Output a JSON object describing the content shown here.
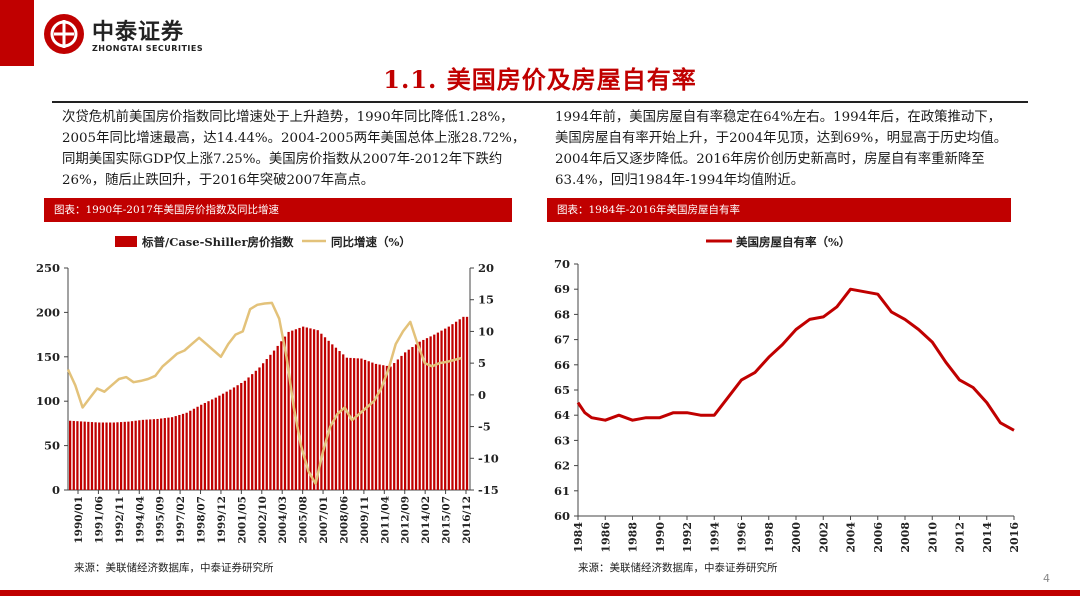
{
  "header": {
    "logo_cn": "中泰证券",
    "logo_en": "ZHONGTAI SECURITIES",
    "title": "1.1. 美国房价及房屋自有率",
    "page_number": "4"
  },
  "text": {
    "left_paragraph": "次贷危机前美国房价指数同比增速处于上升趋势，1990年同比降低1.28%，2005年同比增速最高，达14.44%。2004-2005两年美国总体上涨28.72%，同期美国实际GDP仅上涨7.25%。美国房价指数从2007年-2012年下跌约26%，随后止跌回升，于2016年突破2007年高点。",
    "right_paragraph": "1994年前，美国房屋自有率稳定在64%左右。1994年后，在政策推动下，美国房屋自有率开始上升，于2004年见顶，达到69%，明显高于历史均值。2004年后又逐步降低。2016年房价创历史新高时，房屋自有率重新降至63.4%，回归1984年-1994年均值附近。"
  },
  "figures": {
    "left_caption": "图表：1990年-2017年美国房价指数及同比增速",
    "right_caption": "图表：1984年-2016年美国房屋自有率",
    "left_source": "来源：美联储经济数据库，中泰证券研究所",
    "right_source": "来源：美联储经济数据库，中泰证券研究所"
  },
  "colors": {
    "bar": "#c00000",
    "growth_line": "#e3c27a",
    "ownership_line": "#c00000"
  },
  "chart_data": [
    {
      "type": "bar",
      "title": "1990年-2017年美国房价指数及同比增速",
      "legend": [
        "标普/Case-Shiller房价指数",
        "同比增速（%）"
      ],
      "legend_position": "top",
      "x_tick_labels": [
        "1990/01",
        "1991/06",
        "1992/11",
        "1994/04",
        "1995/09",
        "1997/02",
        "1998/07",
        "1999/12",
        "2001/05",
        "2002/10",
        "2004/03",
        "2005/08",
        "2007/01",
        "2008/06",
        "2009/11",
        "2011/04",
        "2012/09",
        "2014/02",
        "2015/07",
        "2016/12"
      ],
      "y_left": {
        "min": 0,
        "max": 250,
        "ticks": [
          0,
          50,
          100,
          150,
          200,
          250
        ]
      },
      "y_right": {
        "min": -15,
        "max": 20,
        "ticks": [
          -15,
          -10,
          -5,
          0,
          5,
          10,
          15,
          20
        ]
      },
      "series": [
        {
          "name": "标普/Case-Shiller房价指数",
          "axis": "left",
          "type": "bar",
          "frequency": "annual",
          "x": [
            1990,
            1991,
            1992,
            1993,
            1994,
            1995,
            1996,
            1997,
            1998,
            1999,
            2000,
            2001,
            2002,
            2003,
            2004,
            2005,
            2006,
            2007,
            2008,
            2009,
            2010,
            2011,
            2012,
            2013,
            2014,
            2015,
            2016,
            2017
          ],
          "values": [
            78,
            77,
            76,
            76,
            77,
            79,
            80,
            82,
            87,
            96,
            104,
            113,
            123,
            138,
            157,
            178,
            184,
            180,
            164,
            149,
            148,
            142,
            139,
            155,
            167,
            175,
            184,
            195
          ]
        },
        {
          "name": "同比增速（%）",
          "axis": "right",
          "type": "line",
          "x": [
            1990,
            1990.5,
            1991,
            1991.5,
            1992,
            1992.5,
            1993,
            1993.5,
            1994,
            1994.5,
            1995,
            1995.5,
            1996,
            1996.5,
            1997,
            1997.5,
            1998,
            1998.5,
            1999,
            1999.5,
            2000,
            2000.5,
            2001,
            2001.5,
            2002,
            2002.5,
            2003,
            2003.5,
            2004,
            2004.5,
            2005,
            2005.5,
            2006,
            2006.5,
            2007,
            2007.5,
            2008,
            2008.5,
            2009,
            2009.5,
            2010,
            2010.5,
            2011,
            2011.5,
            2012,
            2012.5,
            2013,
            2013.5,
            2014,
            2014.5,
            2015,
            2015.5,
            2016,
            2016.5,
            2017
          ],
          "values": [
            4,
            1.5,
            -2,
            -0.5,
            1,
            0.5,
            1.5,
            2.5,
            2.8,
            2,
            2.2,
            2.5,
            3,
            4.5,
            5.5,
            6.5,
            7,
            8,
            9,
            8,
            7,
            6,
            8,
            9.5,
            10,
            13.5,
            14.2,
            14.4,
            14.5,
            12,
            6,
            -2,
            -8,
            -12,
            -14,
            -9,
            -5,
            -3,
            -2,
            -4,
            -3,
            -2,
            -1,
            1,
            4,
            8,
            10,
            11.5,
            8,
            5,
            4.5,
            5,
            5.2,
            5.5,
            5.8
          ]
        }
      ]
    },
    {
      "type": "line",
      "title": "1984年-2016年美国房屋自有率",
      "legend": [
        "美国房屋自有率（%）"
      ],
      "legend_position": "top",
      "x_tick_labels": [
        "1984",
        "1986",
        "1988",
        "1990",
        "1992",
        "1994",
        "1996",
        "1998",
        "2000",
        "2002",
        "2004",
        "2006",
        "2008",
        "2010",
        "2012",
        "2014",
        "2016"
      ],
      "y": {
        "min": 60,
        "max": 70,
        "ticks": [
          60,
          61,
          62,
          63,
          64,
          65,
          66,
          67,
          68,
          69,
          70
        ]
      },
      "series": [
        {
          "name": "美国房屋自有率（%）",
          "x": [
            1984,
            1984.5,
            1985,
            1986,
            1987,
            1988,
            1989,
            1990,
            1991,
            1992,
            1993,
            1994,
            1995,
            1996,
            1997,
            1998,
            1999,
            2000,
            2001,
            2002,
            2003,
            2004,
            2005,
            2006,
            2007,
            2008,
            2009,
            2010,
            2011,
            2012,
            2013,
            2014,
            2015,
            2016
          ],
          "values": [
            64.5,
            64.1,
            63.9,
            63.8,
            64.0,
            63.8,
            63.9,
            63.9,
            64.1,
            64.1,
            64.0,
            64.0,
            64.7,
            65.4,
            65.7,
            66.3,
            66.8,
            67.4,
            67.8,
            67.9,
            68.3,
            69.0,
            68.9,
            68.8,
            68.1,
            67.8,
            67.4,
            66.9,
            66.1,
            65.4,
            65.1,
            64.5,
            63.7,
            63.4
          ]
        }
      ]
    }
  ]
}
